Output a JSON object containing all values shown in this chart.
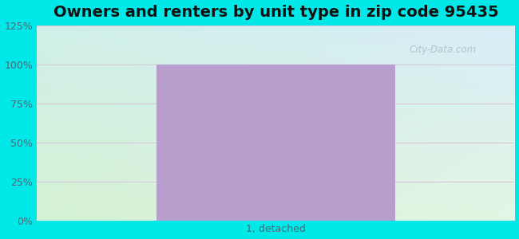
{
  "title": "Owners and renters by unit type in zip code 95435",
  "categories": [
    "1, detached"
  ],
  "values": [
    100
  ],
  "bar_color": "#b89ecc",
  "bar_width": 0.5,
  "ylim": [
    0,
    125
  ],
  "yticks": [
    0,
    25,
    50,
    75,
    100,
    125
  ],
  "ytick_labels": [
    "0%",
    "25%",
    "50%",
    "75%",
    "100%",
    "125%"
  ],
  "title_fontsize": 14,
  "tick_fontsize": 9,
  "bg_outer_color": "#00e8e8",
  "watermark": "City-Data.com",
  "grid_color": "#d8c8d8",
  "tick_color": "#4a6a7a"
}
